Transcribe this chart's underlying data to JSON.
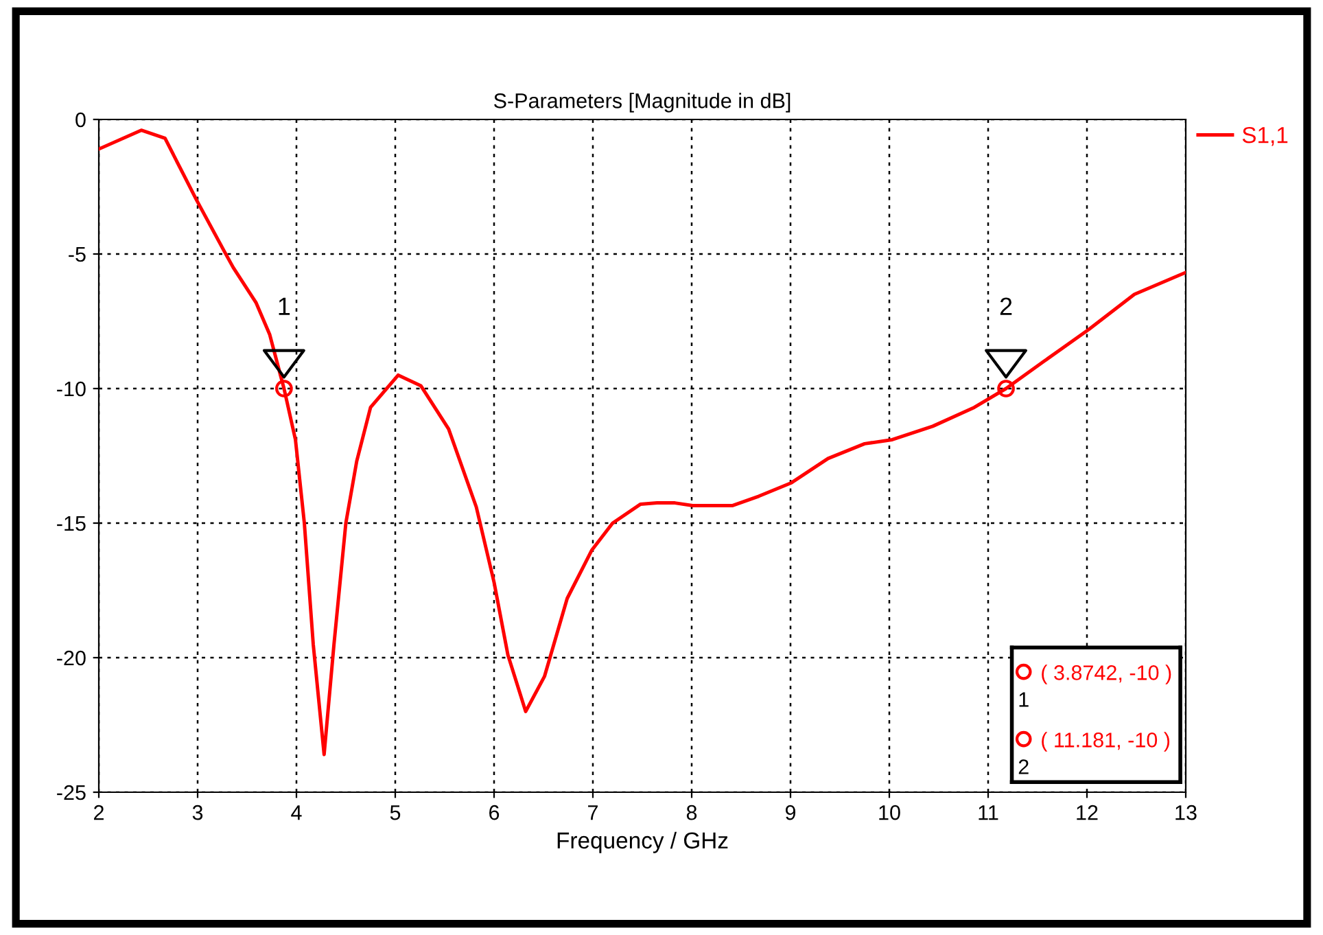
{
  "chart_data": {
    "type": "line",
    "title": "S-Parameters [Magnitude in dB]",
    "xlabel": "Frequency / GHz",
    "xlim": [
      2,
      13
    ],
    "xticks": [
      2,
      3,
      4,
      5,
      6,
      7,
      8,
      9,
      10,
      11,
      12,
      13
    ],
    "ylim": [
      -25,
      0
    ],
    "yticks": [
      -25,
      -20,
      -15,
      -10,
      -5,
      0
    ],
    "grid": true,
    "legend": "top right",
    "line_style": "solid",
    "series": [
      {
        "name": "S1,1",
        "color": "#ff0000",
        "marker": "none",
        "x": [
          2.0,
          2.43,
          2.67,
          2.99,
          3.27,
          3.36,
          3.59,
          3.73,
          3.8742,
          3.99,
          4.08,
          4.17,
          4.28,
          4.38,
          4.5,
          4.61,
          4.75,
          5.03,
          5.26,
          5.54,
          5.82,
          6.0,
          6.14,
          6.32,
          6.51,
          6.74,
          6.99,
          7.2,
          7.48,
          7.65,
          7.83,
          8.01,
          8.41,
          8.68,
          9.01,
          9.38,
          9.75,
          10.03,
          10.44,
          10.86,
          11.181,
          11.56,
          12.02,
          12.48,
          12.99
        ],
        "values": [
          -1.1,
          -0.4,
          -0.7,
          -3.0,
          -4.9,
          -5.5,
          -6.8,
          -8.0,
          -10,
          -11.9,
          -15.0,
          -19.5,
          -23.6,
          -19.5,
          -15.0,
          -12.7,
          -10.7,
          -9.5,
          -9.9,
          -11.5,
          -14.4,
          -17.2,
          -19.9,
          -22.0,
          -20.7,
          -17.8,
          -16.0,
          -15.0,
          -14.3,
          -14.25,
          -14.25,
          -14.35,
          -14.35,
          -14.0,
          -13.5,
          -12.6,
          -12.05,
          -11.9,
          -11.4,
          -10.7,
          -10,
          -9.0,
          -7.8,
          -6.5,
          -5.7
        ]
      },
      {
        "type": "scatter",
        "color": "#ff0000",
        "marker": "circle",
        "x": [
          3.8742,
          11.181
        ],
        "values": [
          -10,
          -10
        ]
      }
    ],
    "annotations": [
      {
        "text": "1",
        "x": 3.8742,
        "y": -10
      },
      {
        "text": "2",
        "x": 11.181,
        "y": -10
      },
      "( 3.8742, -10 )",
      "( 11.181, -10 )"
    ]
  }
}
